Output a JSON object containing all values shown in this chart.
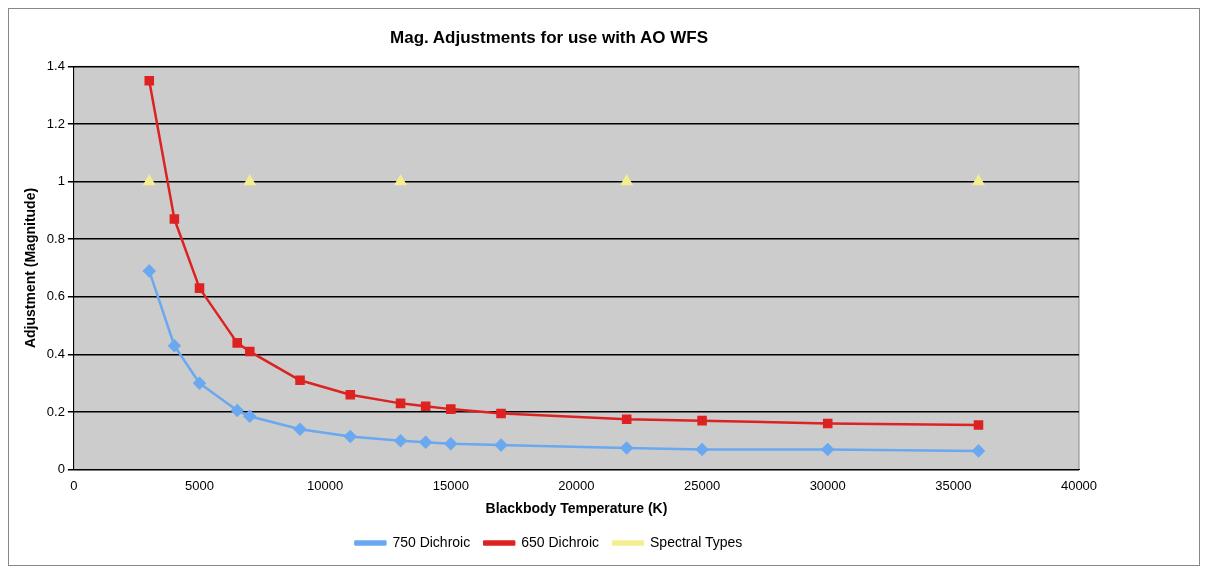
{
  "chart_data": {
    "type": "line",
    "title": "Mag. Adjustments for use with AO WFS",
    "xlabel": "Blackbody Temperature (K)",
    "ylabel": "Adjustment (Magnitude)",
    "xlim": [
      0,
      40000
    ],
    "xticks": [
      0,
      5000,
      10000,
      15000,
      20000,
      25000,
      30000,
      35000,
      40000
    ],
    "ylim": [
      0,
      1.4
    ],
    "yticks": [
      0,
      0.2,
      0.4,
      0.6,
      0.8,
      1,
      1.2,
      1.4
    ],
    "grid": "y",
    "legend": "bottom",
    "series": [
      {
        "name": "750 Dichroic",
        "color": "#6aa8f0",
        "marker": "diamond",
        "x": [
          3000,
          4000,
          5000,
          6500,
          7000,
          9000,
          11000,
          13000,
          14000,
          15000,
          17000,
          22000,
          25000,
          30000,
          36000
        ],
        "values": [
          0.69,
          0.43,
          0.3,
          0.205,
          0.185,
          0.14,
          0.115,
          0.1,
          0.095,
          0.09,
          0.085,
          0.075,
          0.07,
          0.07,
          0.065
        ]
      },
      {
        "name": "650 Dichroic",
        "color": "#dd2222",
        "marker": "square",
        "x": [
          3000,
          4000,
          5000,
          6500,
          7000,
          9000,
          11000,
          13000,
          14000,
          15000,
          17000,
          22000,
          25000,
          30000,
          36000
        ],
        "values": [
          1.35,
          0.87,
          0.63,
          0.44,
          0.41,
          0.31,
          0.26,
          0.23,
          0.22,
          0.21,
          0.195,
          0.175,
          0.17,
          0.16,
          0.155
        ]
      },
      {
        "name": "Spectral Types",
        "type": "scatter",
        "color": "#f5ee90",
        "marker": "triangle",
        "x": [
          3000,
          7000,
          13000,
          22000,
          36000
        ],
        "values": [
          1,
          1,
          1,
          1,
          1
        ]
      }
    ]
  }
}
